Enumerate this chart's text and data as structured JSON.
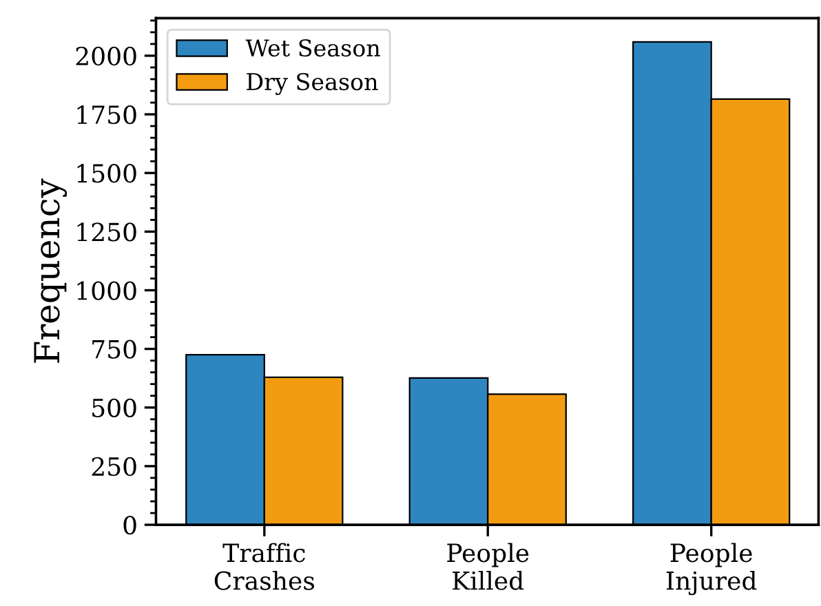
{
  "chart_data": {
    "type": "bar",
    "ylabel": "Frequency",
    "categories": [
      "Traffic\nCrashes",
      "People\nKilled",
      "People\nInjured"
    ],
    "series": [
      {
        "name": "Wet Season",
        "color": "#2e86c1",
        "values": [
          725,
          626,
          2059
        ]
      },
      {
        "name": "Dry Season",
        "color": "#f39c12",
        "values": [
          629,
          557,
          1815
        ]
      }
    ],
    "ylim": [
      0,
      2160
    ],
    "yticks": [
      0,
      250,
      500,
      750,
      1000,
      1250,
      1500,
      1750,
      2000
    ],
    "grid": false,
    "legend": "top left"
  }
}
